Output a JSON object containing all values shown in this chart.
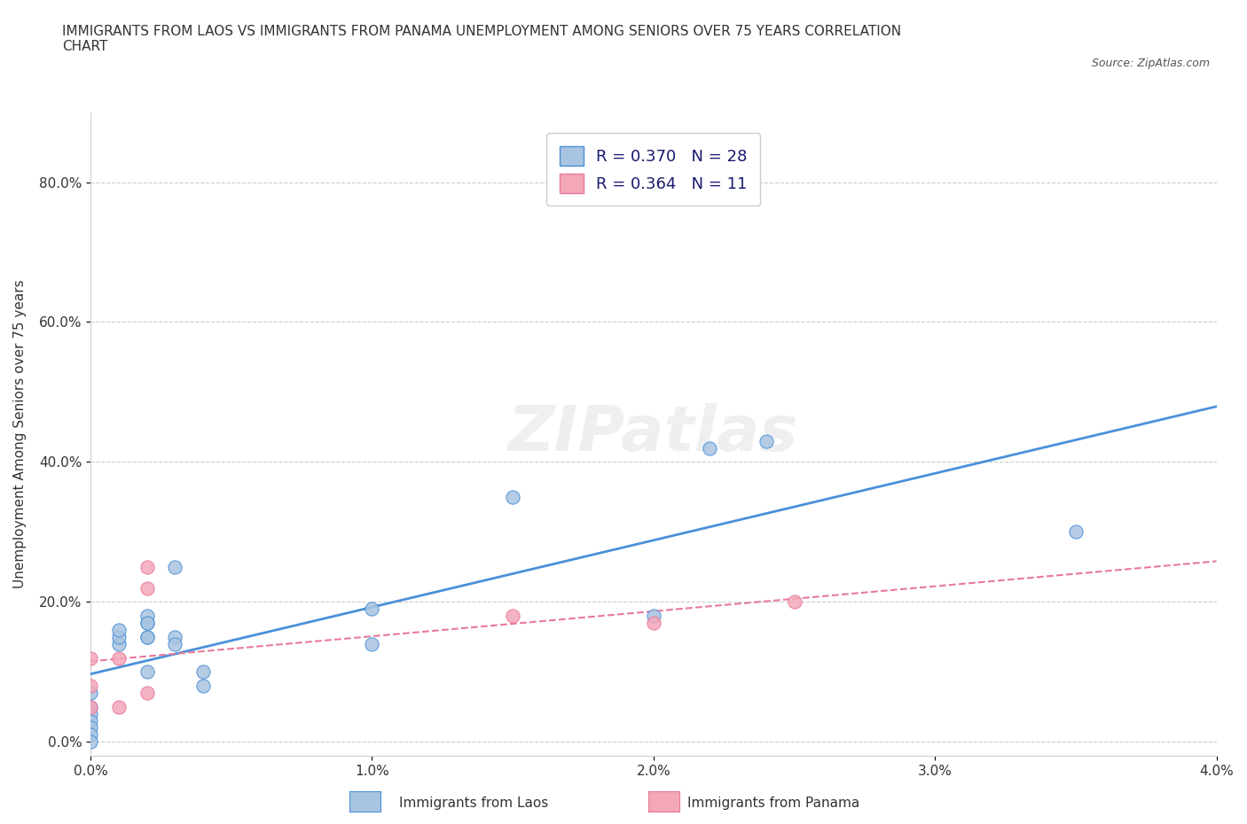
{
  "title": "IMMIGRANTS FROM LAOS VS IMMIGRANTS FROM PANAMA UNEMPLOYMENT AMONG SENIORS OVER 75 YEARS CORRELATION\nCHART",
  "source_text": "Source: ZipAtlas.com",
  "xlabel": "",
  "ylabel": "Unemployment Among Seniors over 75 years",
  "xlim": [
    0.0,
    0.04
  ],
  "ylim": [
    0.0,
    0.85
  ],
  "xticks": [
    0.0,
    0.01,
    0.02,
    0.03,
    0.04
  ],
  "xtick_labels": [
    "0.0%",
    "1.0%",
    "2.0%",
    "3.0%",
    "4.0%"
  ],
  "ytick_labels": [
    "0.0%",
    "20.0%",
    "40.0%",
    "60.0%",
    "80.0%"
  ],
  "yticks": [
    0.0,
    0.2,
    0.4,
    0.6,
    0.8
  ],
  "laos_color": "#a8c4e0",
  "panama_color": "#f4a7b9",
  "laos_line_color": "#4a90d9",
  "panama_line_color": "#e87a9a",
  "R_laos": 0.37,
  "N_laos": 28,
  "R_panama": 0.364,
  "N_panama": 11,
  "watermark": "ZIPatlas",
  "laos_x": [
    0.0,
    0.0,
    0.0,
    0.0,
    0.0,
    0.0,
    0.0,
    0.001,
    0.001,
    0.001,
    0.002,
    0.002,
    0.002,
    0.002,
    0.002,
    0.002,
    0.003,
    0.003,
    0.003,
    0.004,
    0.004,
    0.01,
    0.01,
    0.015,
    0.02,
    0.022,
    0.024,
    0.035
  ],
  "laos_y": [
    0.05,
    0.04,
    0.03,
    0.02,
    0.01,
    0.0,
    0.07,
    0.14,
    0.15,
    0.16,
    0.15,
    0.17,
    0.18,
    0.1,
    0.15,
    0.17,
    0.15,
    0.14,
    0.25,
    0.1,
    0.08,
    0.19,
    0.14,
    0.35,
    0.18,
    0.42,
    0.43,
    0.3
  ],
  "panama_x": [
    0.0,
    0.0,
    0.0,
    0.001,
    0.001,
    0.002,
    0.002,
    0.002,
    0.015,
    0.02,
    0.025
  ],
  "panama_y": [
    0.12,
    0.08,
    0.05,
    0.12,
    0.05,
    0.22,
    0.25,
    0.07,
    0.18,
    0.17,
    0.2
  ],
  "grid_color": "#cccccc",
  "background_color": "#ffffff"
}
